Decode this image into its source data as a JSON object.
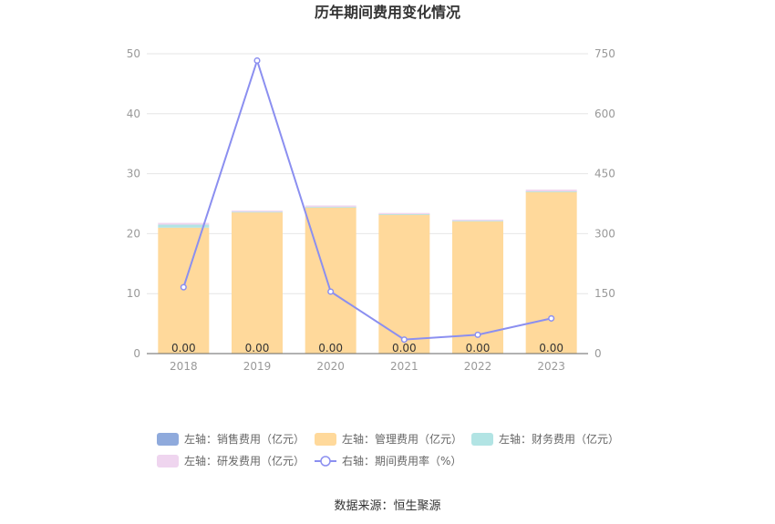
{
  "chart_data": {
    "type": "bar",
    "title": "历年期间费用变化情况",
    "categories": [
      "2018",
      "2019",
      "2020",
      "2021",
      "2022",
      "2023"
    ],
    "stacked": true,
    "left_axis": {
      "min": 0,
      "max": 50,
      "ticks": [
        "0",
        "10",
        "20",
        "30",
        "40",
        "50"
      ]
    },
    "right_axis": {
      "min": 0,
      "max": 750,
      "ticks": [
        "0",
        "150",
        "300",
        "450",
        "600",
        "750"
      ]
    },
    "series": [
      {
        "name": "左轴：销售费用（亿元）",
        "axis": "left",
        "kind": "bar",
        "color": "#8faadc",
        "values": [
          0.0,
          0.0,
          0.0,
          0.0,
          0.0,
          0.0
        ]
      },
      {
        "name": "左轴：管理费用（亿元）",
        "axis": "left",
        "kind": "bar",
        "color": "#ffd99b",
        "values": [
          21.0,
          23.6,
          24.4,
          23.2,
          22.1,
          27.0
        ]
      },
      {
        "name": "左轴：财务费用（亿元）",
        "axis": "left",
        "kind": "bar",
        "color": "#b2e4e4",
        "values": [
          0.5,
          0.05,
          0.05,
          0.05,
          0.05,
          0.05
        ]
      },
      {
        "name": "左轴：研发费用（亿元）",
        "axis": "left",
        "kind": "bar",
        "color": "#efd5ef",
        "values": [
          0.3,
          0.2,
          0.25,
          0.2,
          0.2,
          0.3
        ]
      },
      {
        "name": "右轴：期间费用率（%）",
        "axis": "right",
        "kind": "line",
        "color": "#8b8ff0",
        "values": [
          166,
          733,
          155,
          35,
          47,
          88
        ]
      }
    ],
    "data_labels": [
      "0.00",
      "0.00",
      "0.00",
      "0.00",
      "0.00",
      "0.00"
    ],
    "legend_position": "bottom",
    "grid": true
  },
  "source_text": "数据来源：恒生聚源"
}
